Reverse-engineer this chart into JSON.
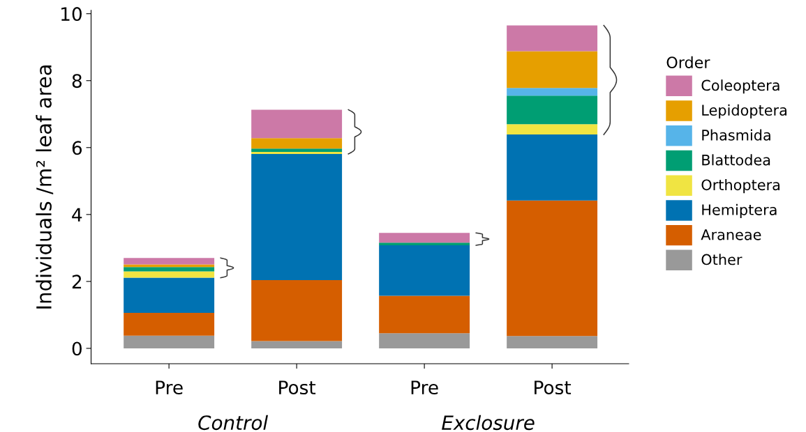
{
  "chart_data": {
    "type": "bar",
    "stacked": true,
    "ylabel": "Individuals /m² leaf area",
    "legend_title": "Order",
    "legend": "right",
    "categories": [
      "Pre",
      "Post",
      "Pre",
      "Post"
    ],
    "annotations": [
      "Control",
      "Exclosure"
    ],
    "ylim": [
      -0.46,
      10.1
    ],
    "yticks": [
      0,
      2,
      4,
      6,
      8,
      10
    ],
    "grid": false,
    "series": [
      {
        "name": "Other",
        "color": "#999999",
        "values": [
          0.38,
          0.22,
          0.45,
          0.37
        ]
      },
      {
        "name": "Araneae",
        "color": "#d55e00",
        "values": [
          0.68,
          1.82,
          1.12,
          4.05
        ]
      },
      {
        "name": "Hemiptera",
        "color": "#0072b2",
        "values": [
          1.05,
          3.77,
          1.51,
          1.97
        ]
      },
      {
        "name": "Orthoptera",
        "color": "#f0e442",
        "values": [
          0.19,
          0.06,
          0,
          0.31
        ]
      },
      {
        "name": "Blattodea",
        "color": "#009e73",
        "values": [
          0.13,
          0.1,
          0.08,
          0.85
        ]
      },
      {
        "name": "Phasmida",
        "color": "#56b4e9",
        "values": [
          0,
          0,
          0,
          0.23
        ]
      },
      {
        "name": "Lepidoptera",
        "color": "#e69f00",
        "values": [
          0.08,
          0.31,
          0,
          1.1
        ]
      },
      {
        "name": "Coleoptera",
        "color": "#cc79a7",
        "values": [
          0.19,
          0.85,
          0.29,
          0.77
        ]
      }
    ]
  }
}
